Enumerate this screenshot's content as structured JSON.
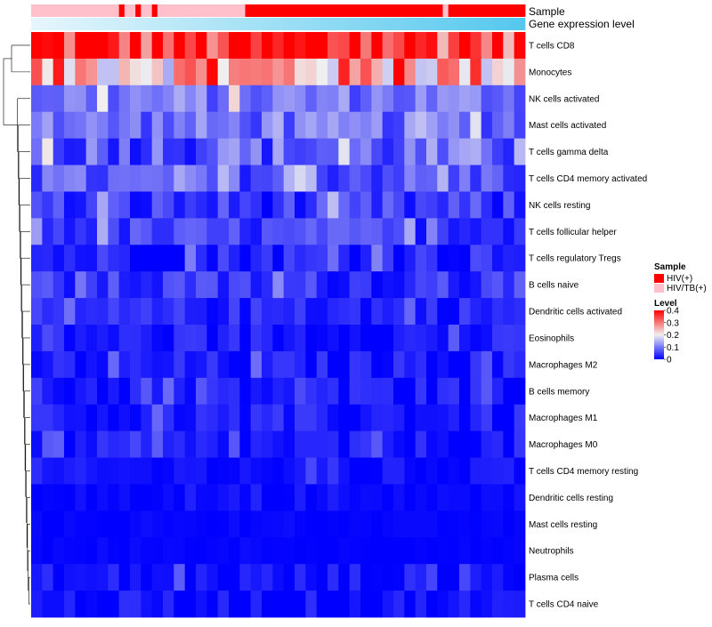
{
  "chart_data": {
    "type": "heatmap",
    "annotations": [
      {
        "label": "Sample",
        "type": "categorical"
      },
      {
        "label": "Gene expression level",
        "type": "continuous",
        "from_color": "#e6f6fc",
        "to_color": "#55c8ee"
      }
    ],
    "sample_groups": [
      1,
      1,
      1,
      1,
      1,
      1,
      1,
      1,
      1,
      1,
      1,
      1,
      1,
      1,
      1,
      1,
      0,
      1,
      1,
      0,
      1,
      1,
      0,
      1,
      1,
      1,
      1,
      1,
      1,
      1,
      1,
      1,
      1,
      1,
      1,
      1,
      1,
      1,
      1,
      0,
      0,
      0,
      0,
      0,
      0,
      0,
      0,
      0,
      0,
      0,
      0,
      0,
      0,
      0,
      0,
      0,
      0,
      0,
      0,
      0,
      0,
      0,
      0,
      0,
      0,
      0,
      0,
      0,
      0,
      0,
      0,
      0,
      0,
      0,
      0,
      1,
      0,
      0,
      0,
      0,
      0,
      0,
      0,
      0,
      0,
      0,
      0,
      0,
      0,
      0
    ],
    "rows": [
      "T cells CD8",
      "Monocytes",
      "NK cells activated",
      "Mast cells activated",
      "T cells gamma delta",
      "T cells CD4 memory activated",
      "NK cells resting",
      "T cells follicular helper",
      "T cells regulatory  Tregs",
      "B cells naive",
      "Dendritic cells activated",
      "Eosinophils",
      "Macrophages M2",
      "B cells memory",
      "Macrophages M1",
      "Macrophages M0",
      "T cells CD4 memory resting",
      "Dendritic cells resting",
      "Mast cells resting",
      "Neutrophils",
      "Plasma cells",
      "T cells CD4 naive"
    ],
    "row_base": [
      0.36,
      0.26,
      0.1,
      0.09,
      0.08,
      0.07,
      0.04,
      0.05,
      0.03,
      0.04,
      0.03,
      0.02,
      0.02,
      0.02,
      0.02,
      0.015,
      0.01,
      0.005,
      0.003,
      0.002,
      0.012,
      0.01
    ],
    "row_var": [
      0.12,
      0.12,
      0.05,
      0.05,
      0.07,
      0.05,
      0.05,
      0.04,
      0.04,
      0.04,
      0.03,
      0.03,
      0.03,
      0.03,
      0.03,
      0.03,
      0.02,
      0.01,
      0.005,
      0.004,
      0.03,
      0.03
    ],
    "n_columns": 90,
    "legends": {
      "sample_title": "Sample",
      "sample_items": [
        {
          "label": "HIV(+)",
          "color": "#ff0000"
        },
        {
          "label": "HIV/TB(+)",
          "color": "#ffc0cb"
        }
      ],
      "level_title": "Level",
      "level_ticks": [
        "0.4",
        "0.3",
        "0.2",
        "0.1",
        "0"
      ],
      "level_values": [
        0.4,
        0.3,
        0.2,
        0.1,
        0
      ]
    },
    "color_scale": {
      "min": 0,
      "mid": 0.2,
      "max": 0.4,
      "low": "#0000ff",
      "mid_color": "#f0f0f0",
      "high": "#ff0000"
    }
  }
}
